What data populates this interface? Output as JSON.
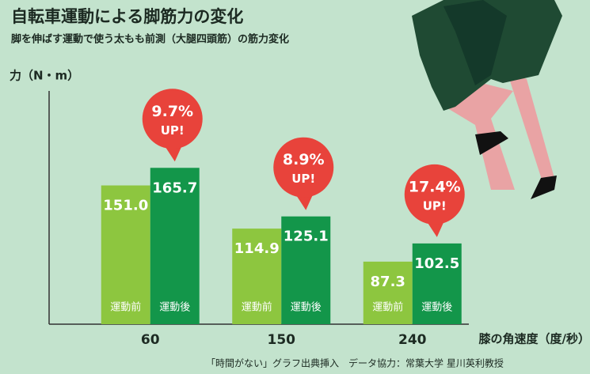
{
  "chart_data": {
    "type": "bar",
    "title": "自転車運動による脚筋力の変化",
    "subtitle": "脚を伸ばす運動で使う太もも前測（大腿四頭筋）の筋力変化",
    "y_label": "力（N・m）",
    "x_label": "膝の角速度（度/秒）",
    "source": "「時間がない」グラフ出典挿入　データ協力：常葉大学 星川英利教授",
    "categories": [
      "60",
      "150",
      "240"
    ],
    "series": [
      {
        "name": "運動前",
        "color": "#8dc63f",
        "values": [
          151.0,
          114.9,
          87.3
        ],
        "value_labels": [
          "151.0",
          "114.9",
          "87.3"
        ]
      },
      {
        "name": "運動後",
        "color": "#13964a",
        "values": [
          165.7,
          125.1,
          102.5
        ]
      }
    ],
    "annotations": [
      {
        "label": "9.7%",
        "note": "UP!"
      },
      {
        "label": "8.9%",
        "note": "UP!"
      },
      {
        "label": "17.4%",
        "note": "UP!"
      }
    ],
    "bubble_color": "#e8433b",
    "ylim": [
      35,
      230
    ]
  }
}
